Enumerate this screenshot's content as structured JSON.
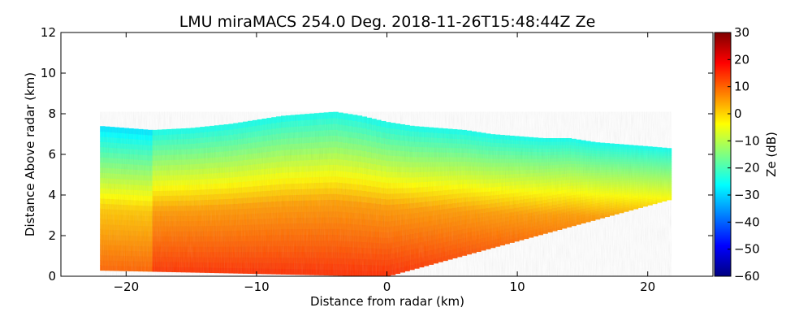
{
  "chart_data": {
    "type": "heatmap",
    "title": "LMU miraMACS 254.0 Deg. 2018-11-26T15:48:44Z  Ze",
    "xlabel": "Distance from radar (km)",
    "ylabel": "Distance Above radar  (km)",
    "xlim": [
      -25,
      25
    ],
    "ylim": [
      0,
      12
    ],
    "xticks": [
      -20,
      -10,
      0,
      10,
      20
    ],
    "xtick_labels": [
      "−20",
      "−10",
      "0",
      "10",
      "20"
    ],
    "yticks": [
      0,
      2,
      4,
      6,
      8,
      10,
      12
    ],
    "ytick_labels": [
      "0",
      "2",
      "4",
      "6",
      "8",
      "10",
      "12"
    ],
    "grid": false,
    "colorbar": {
      "label": "Ze (dB)",
      "colormap": "jet",
      "range": [
        -60,
        30
      ],
      "ticks": [
        30,
        20,
        10,
        0,
        -10,
        -20,
        -30,
        -40,
        -50,
        -60
      ],
      "tick_labels": [
        "30",
        "20",
        "10",
        "0",
        "−10",
        "−20",
        "−30",
        "−40",
        "−50",
        "−60"
      ]
    },
    "scan": {
      "left_end_km": -22,
      "right_end_km": 21.8,
      "right_end_height_km": 3.8,
      "ze_near_surface_db": 15,
      "ze_midlevel_db": 5,
      "ze_cloud_top_db": -25
    },
    "cloud_top_km": {
      "x": [
        -22,
        -20,
        -18,
        -15,
        -12,
        -10,
        -8,
        -6,
        -4,
        -2,
        0,
        2,
        4,
        6,
        8,
        10,
        12,
        14,
        16,
        18,
        20,
        21.8
      ],
      "y": [
        7.4,
        7.3,
        7.2,
        7.3,
        7.5,
        7.7,
        7.9,
        8.0,
        8.1,
        7.9,
        7.6,
        7.4,
        7.3,
        7.2,
        7.0,
        6.9,
        6.8,
        6.8,
        6.6,
        6.5,
        6.4,
        6.3
      ]
    }
  }
}
